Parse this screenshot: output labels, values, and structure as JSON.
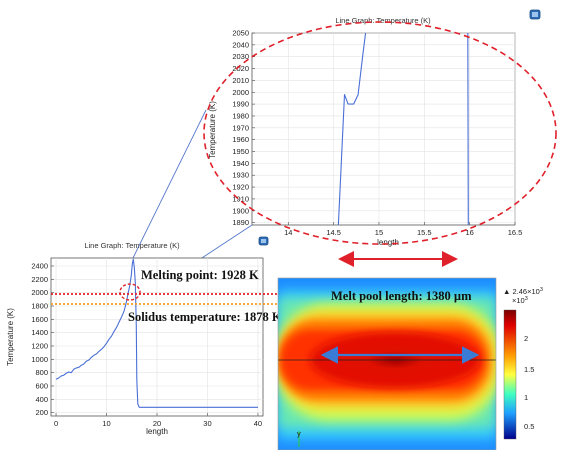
{
  "chart_data": [
    {
      "id": "zoom",
      "type": "line",
      "title": "Line Graph: Temperature (K)",
      "xlabel": "length",
      "ylabel": "Temperature (K)",
      "xlim": [
        13.6,
        16.5
      ],
      "ylim": [
        1888,
        2050
      ],
      "xticks": [
        "14",
        "14.5",
        "15",
        "15.5",
        "16",
        "16.5"
      ],
      "yticks": [
        "1890",
        "1900",
        "1910",
        "1920",
        "1930",
        "1940",
        "1950",
        "1960",
        "1970",
        "1980",
        "1990",
        "2000",
        "2010",
        "2020",
        "2030",
        "2040",
        "2050"
      ],
      "grid": true,
      "series": [
        {
          "x": [
            14.55,
            14.62,
            14.66,
            14.72,
            14.77,
            14.82,
            14.86
          ],
          "y": [
            1885,
            1998,
            1990,
            1990,
            1998,
            2030,
            2055
          ]
        },
        {
          "x": [
            15.98,
            15.985
          ],
          "y": [
            2055,
            1885
          ]
        }
      ]
    },
    {
      "id": "main",
      "type": "line",
      "title": "Line Graph: Temperature (K)",
      "xlabel": "length",
      "ylabel": "Temperature (K)",
      "xlim": [
        -1,
        41
      ],
      "ylim": [
        150,
        2520
      ],
      "xticks": [
        "0",
        "10",
        "20",
        "30",
        "40"
      ],
      "yticks": [
        "200",
        "400",
        "600",
        "800",
        "1000",
        "1200",
        "1400",
        "1600",
        "1800",
        "2000",
        "2200",
        "2400"
      ],
      "grid": true,
      "series": [
        {
          "x": [
            0,
            0.5,
            1,
            1.5,
            2,
            2.5,
            3,
            3.5,
            4,
            4.5,
            5,
            5.5,
            6,
            6.5,
            7,
            7.5,
            8,
            8.5,
            9,
            9.5,
            10,
            10.5,
            11,
            11.5,
            12,
            12.5,
            13,
            13.5,
            14,
            14.3,
            14.6,
            14.9,
            15.1,
            15.3,
            15.5,
            15.7,
            15.9,
            16,
            16.2,
            16.5,
            18,
            20,
            25,
            30,
            35,
            40
          ],
          "y": [
            700,
            720,
            750,
            760,
            790,
            810,
            800,
            850,
            870,
            880,
            910,
            930,
            970,
            990,
            1030,
            1060,
            1080,
            1120,
            1150,
            1190,
            1240,
            1300,
            1350,
            1420,
            1480,
            1560,
            1640,
            1730,
            1880,
            2000,
            2100,
            2260,
            2430,
            2500,
            2380,
            2150,
            1500,
            700,
            330,
            280,
            280,
            280,
            280,
            280,
            280,
            280
          ]
        }
      ]
    }
  ],
  "annotations": {
    "melting_point": "Melting point: 1928 K",
    "solidus": "Solidus temperature: 1878 K",
    "melt_pool_length": "Melt pool length: 1380 µm"
  },
  "colorbar": {
    "max_label": "▲ 2.46×10",
    "max_exp": "3",
    "scale_label": "×10",
    "scale_exp": "3",
    "ticks": [
      "2",
      "1.5",
      "1",
      "0.5"
    ]
  },
  "axis_glyph": "y",
  "colors": {
    "line": "#4a6fd6",
    "melting_line": "#e0202a",
    "solidus_line": "#f0a020",
    "callout": "#5577cc",
    "ellipse": "#e0202a",
    "arrow_red": "#e0202a",
    "arrow_blue": "#3a7bd5"
  }
}
